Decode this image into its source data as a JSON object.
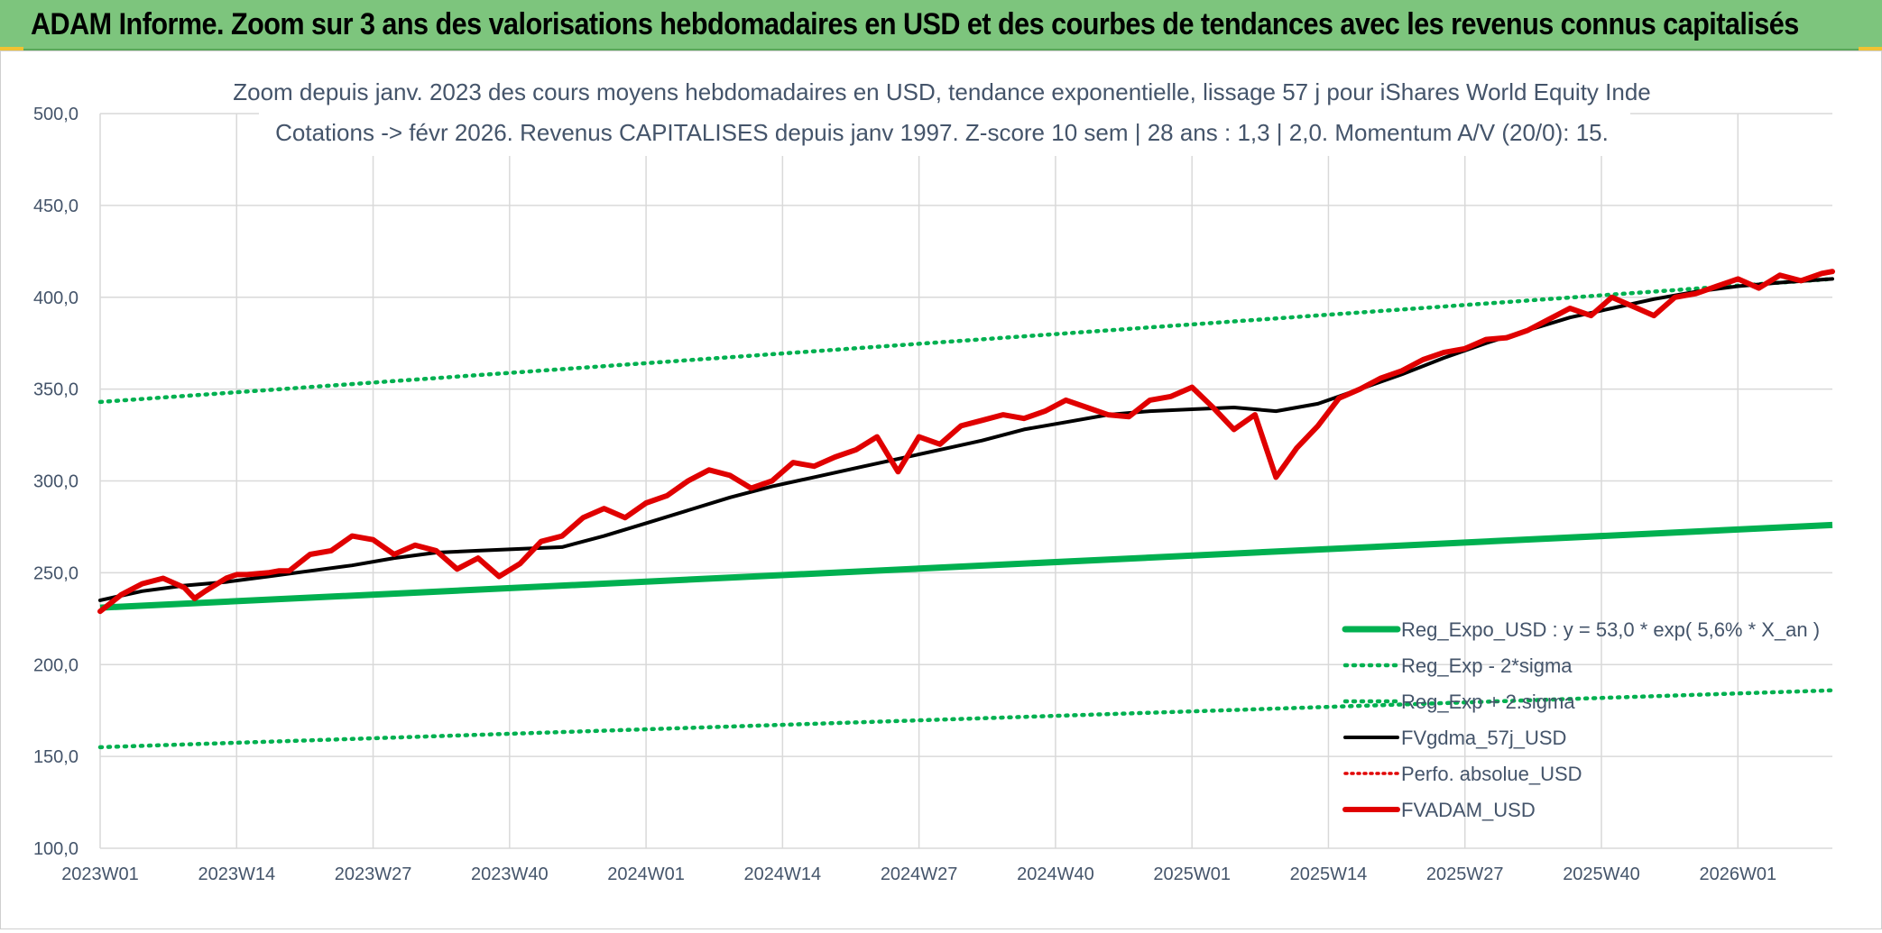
{
  "header": {
    "title": "ADAM Informe. Zoom sur 3 ans des valorisations hebdomadaires en USD et des courbes de tendances avec les revenus connus capitalisés"
  },
  "chart_data": {
    "type": "line",
    "title_line1": "Zoom depuis janv. 2023 des cours moyens hebdomadaires en USD, tendance exponentielle, lissage 57 j pour iShares World Equity Inde",
    "title_line2": "Cotations -> févr 2026. Revenus CAPITALISES depuis janv 1997. Z-score 10 sem | 28 ans : 1,3 | 2,0. Momentum A/V (20/0): 15.",
    "ylim": [
      100,
      500
    ],
    "yticks": [
      "100,0",
      "150,0",
      "200,0",
      "250,0",
      "300,0",
      "350,0",
      "400,0",
      "450,0",
      "500,0"
    ],
    "x_tick_labels": [
      "2023W01",
      "2023W14",
      "2023W27",
      "2023W40",
      "2024W01",
      "2024W14",
      "2024W27",
      "2024W40",
      "2025W01",
      "2025W14",
      "2025W27",
      "2025W40",
      "2026W01"
    ],
    "grid": true,
    "legend_position": "bottom-right",
    "legend": [
      {
        "label": "Reg_Expo_USD : y = 53,0 * exp( 5,6% *  X_an )",
        "color": "#00b050",
        "style": "solid-thick"
      },
      {
        "label": "Reg_Exp - 2*sigma",
        "color": "#00b050",
        "style": "dotted"
      },
      {
        "label": "Reg_Exp + 2.sigma",
        "color": "#00b050",
        "style": "dotted"
      },
      {
        "label": "FVgdma_57j_USD",
        "color": "#000000",
        "style": "solid"
      },
      {
        "label": "Perfo. absolue_USD",
        "color": "#e00000",
        "style": "dotted"
      },
      {
        "label": "FVADAM_USD",
        "color": "#e00000",
        "style": "solid-thick"
      }
    ],
    "series": [
      {
        "name": "Reg_Expo_USD : y = 53,0 * exp( 5,6% *  X_an )",
        "color": "#00b050",
        "x": [
          0,
          165
        ],
        "values": [
          231,
          276
        ]
      },
      {
        "name": "Reg_Exp + 2.sigma",
        "color": "#00b050",
        "x": [
          0,
          165
        ],
        "values": [
          343,
          410
        ]
      },
      {
        "name": "Reg_Exp - 2*sigma",
        "color": "#00b050",
        "x": [
          0,
          165
        ],
        "values": [
          155,
          186
        ]
      },
      {
        "name": "FVgdma_57j_USD",
        "color": "#000000",
        "x": [
          0,
          4,
          8,
          12,
          16,
          20,
          24,
          28,
          32,
          36,
          40,
          44,
          48,
          52,
          56,
          60,
          64,
          68,
          72,
          76,
          80,
          84,
          88,
          92,
          96,
          100,
          104,
          108,
          112,
          116,
          120,
          124,
          128,
          132,
          136,
          140,
          144,
          148,
          152,
          156,
          160,
          165
        ],
        "values": [
          235,
          240,
          243,
          245,
          248,
          251,
          254,
          258,
          261,
          262,
          263,
          264,
          270,
          277,
          284,
          291,
          297,
          302,
          307,
          312,
          317,
          322,
          328,
          332,
          336,
          338,
          339,
          340,
          338,
          342,
          350,
          358,
          367,
          375,
          382,
          389,
          394,
          399,
          403,
          406,
          408,
          410
        ]
      },
      {
        "name": "FVADAM_USD",
        "color": "#e00000",
        "x": [
          0,
          2,
          4,
          6,
          8,
          9,
          10,
          12,
          13,
          14,
          16,
          17,
          18,
          20,
          22,
          24,
          26,
          28,
          30,
          32,
          34,
          36,
          38,
          40,
          42,
          44,
          46,
          48,
          50,
          52,
          54,
          56,
          58,
          60,
          62,
          64,
          66,
          68,
          70,
          72,
          74,
          76,
          78,
          80,
          82,
          84,
          86,
          88,
          90,
          92,
          94,
          96,
          98,
          100,
          102,
          104,
          106,
          108,
          110,
          112,
          114,
          116,
          118,
          120,
          122,
          124,
          126,
          128,
          130,
          132,
          134,
          136,
          138,
          140,
          142,
          144,
          146,
          148,
          150,
          152,
          154,
          156,
          158,
          160,
          162,
          164,
          165
        ],
        "values": [
          229,
          238,
          244,
          247,
          242,
          236,
          240,
          247,
          249,
          249,
          250,
          251,
          251,
          260,
          262,
          270,
          268,
          260,
          265,
          262,
          252,
          258,
          248,
          255,
          267,
          270,
          280,
          285,
          280,
          288,
          292,
          300,
          306,
          303,
          296,
          300,
          310,
          308,
          313,
          317,
          324,
          305,
          324,
          320,
          330,
          333,
          336,
          334,
          338,
          344,
          340,
          336,
          335,
          344,
          346,
          351,
          340,
          328,
          336,
          302,
          318,
          330,
          345,
          350,
          356,
          360,
          366,
          370,
          372,
          377,
          378,
          382,
          388,
          394,
          390,
          400,
          395,
          390,
          400,
          402,
          406,
          410,
          405,
          412,
          409,
          413,
          414
        ]
      }
    ]
  }
}
